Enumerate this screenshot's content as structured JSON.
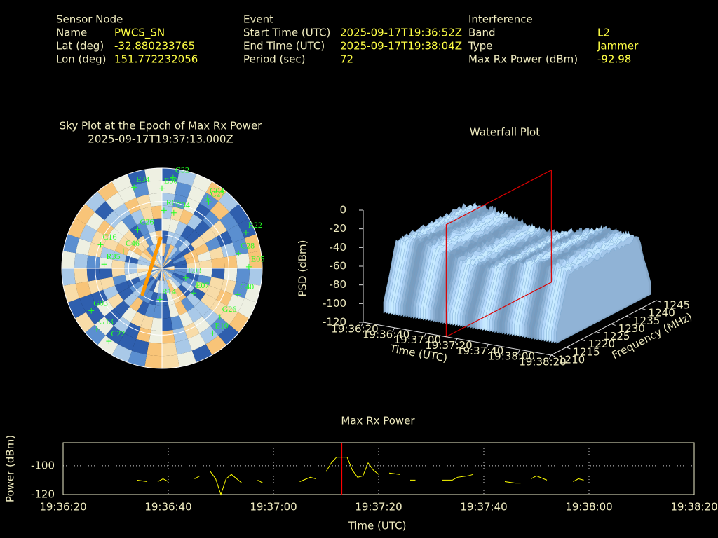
{
  "header": {
    "columns": [
      {
        "title": "Sensor Node",
        "rows": [
          {
            "label": "Name",
            "value": "PWCS_SN"
          },
          {
            "label": "Lat (deg)",
            "value": "-32.880233765"
          },
          {
            "label": "Lon (deg)",
            "value": "151.772232056"
          }
        ]
      },
      {
        "title": "Event",
        "rows": [
          {
            "label": "Start Time (UTC)",
            "value": "2025-09-17T19:36:52Z"
          },
          {
            "label": "End Time (UTC)",
            "value": "2025-09-17T19:38:04Z"
          },
          {
            "label": "Period (sec)",
            "value": "72"
          }
        ]
      },
      {
        "title": "Interference",
        "rows": [
          {
            "label": "Band",
            "value": "L2"
          },
          {
            "label": "Type",
            "value": "Jammer"
          },
          {
            "label": "Max Rx Power (dBm)",
            "value": "-92.98"
          }
        ]
      }
    ]
  },
  "chart_data": [
    {
      "type": "skyplot",
      "title": "Sky Plot at the Epoch of Max Rx Power",
      "epoch": "2025-09-17T19:37:13.000Z",
      "satellites": [
        {
          "label": "C32",
          "az": 7,
          "el": 8
        },
        {
          "label": "E30",
          "az": 0,
          "el": 18
        },
        {
          "label": "G04",
          "az": 33,
          "el": 15
        },
        {
          "label": "C27",
          "az": 35,
          "el": 17
        },
        {
          "label": "R03",
          "az": 2,
          "el": 38
        },
        {
          "label": "R22",
          "az": 67,
          "el": 8
        },
        {
          "label": "C28",
          "az": 79,
          "el": 20
        },
        {
          "label": "E05",
          "az": 89,
          "el": 12
        },
        {
          "label": "C34",
          "az": 12,
          "el": 39
        },
        {
          "label": "C26",
          "az": 328,
          "el": 49
        },
        {
          "label": "C16",
          "az": 291,
          "el": 31
        },
        {
          "label": "C46",
          "az": 294,
          "el": 52
        },
        {
          "label": "E03",
          "az": 112,
          "el": 67
        },
        {
          "label": "E07",
          "az": 128,
          "el": 54
        },
        {
          "label": "R14",
          "az": 184,
          "el": 62
        },
        {
          "label": "C40",
          "az": 109,
          "el": 18
        },
        {
          "label": "G26",
          "az": 130,
          "el": 22
        },
        {
          "label": "E10",
          "az": 142,
          "el": 16
        },
        {
          "label": "G03",
          "az": 239,
          "el": 16
        },
        {
          "label": "G13",
          "az": 227,
          "el": 10
        },
        {
          "label": "C22",
          "az": 216,
          "el": 9
        },
        {
          "label": "R35",
          "az": 274,
          "el": 38
        },
        {
          "label": "E34",
          "az": 341,
          "el": 13
        }
      ]
    },
    {
      "type": "surface",
      "title": "Waterfall Plot",
      "x_label": "Time (UTC)",
      "y_label": "Frequency (MHz)",
      "z_label": "PSD (dBm)",
      "xlim": [
        "19:36:20",
        "19:38:20"
      ],
      "xticks": [
        "19:36:20",
        "19:36:40",
        "19:37:00",
        "19:37:20",
        "19:37:40",
        "19:38:00",
        "19:38:20"
      ],
      "ylim": [
        1210,
        1245
      ],
      "yticks": [
        1210,
        1215,
        1220,
        1225,
        1230,
        1235,
        1240,
        1245
      ],
      "zlim": [
        -120,
        0
      ],
      "zticks": [
        0,
        -20,
        -40,
        -60,
        -80,
        -100,
        -120
      ]
    },
    {
      "type": "line",
      "title": "Max Rx Power",
      "x_label": "Time (UTC)",
      "y_label": "Power (dBm)",
      "xlim": [
        "19:36:20",
        "19:38:20"
      ],
      "xticks": [
        "19:36:20",
        "19:36:40",
        "19:37:00",
        "19:37:20",
        "19:37:40",
        "19:38:00",
        "19:38:20"
      ],
      "ylim": [
        -120,
        -84
      ],
      "yticks": [
        -100,
        -120
      ],
      "grid": true,
      "color": "#ffff00",
      "x": [
        "19:36:34",
        "19:36:36",
        "19:36:37",
        "19:36:38",
        "19:36:39",
        "19:36:40",
        "19:36:42",
        "19:36:45",
        "19:36:46",
        "19:36:47",
        "19:36:48",
        "19:36:49",
        "19:36:50",
        "19:36:51",
        "19:36:52",
        "19:36:54",
        "19:36:55",
        "19:36:57",
        "19:36:58",
        "19:36:59",
        "19:37:05",
        "19:37:07",
        "19:37:08",
        "19:37:09",
        "19:37:10",
        "19:37:11",
        "19:37:12",
        "19:37:14",
        "19:37:15",
        "19:37:16",
        "19:37:17",
        "19:37:18",
        "19:37:19",
        "19:37:20",
        "19:37:21",
        "19:37:22",
        "19:37:24",
        "19:37:25",
        "19:37:26",
        "19:37:27",
        "19:37:28",
        "19:37:32",
        "19:37:34",
        "19:37:35",
        "19:37:37",
        "19:37:38",
        "19:37:40",
        "19:37:44",
        "19:37:46",
        "19:37:47",
        "19:37:48",
        "19:37:49",
        "19:37:50",
        "19:37:52",
        "19:37:54",
        "19:37:57",
        "19:37:58",
        "19:37:59"
      ],
      "values": [
        -110,
        -111,
        null,
        -111,
        -109,
        -111,
        null,
        -109,
        -107,
        null,
        -104,
        -109,
        -120,
        -109,
        -106,
        -112,
        null,
        -110,
        -112,
        null,
        -111,
        -108,
        -109,
        null,
        -104,
        -98,
        -94,
        -94,
        -103,
        -108,
        -107,
        -98,
        -103,
        -106,
        null,
        -105,
        -106,
        null,
        -110,
        -110,
        null,
        -110,
        -110,
        -108,
        -107,
        -106,
        null,
        -111,
        -112,
        -112,
        null,
        -109,
        -107,
        -110,
        null,
        -111,
        -109,
        -110
      ]
    }
  ]
}
